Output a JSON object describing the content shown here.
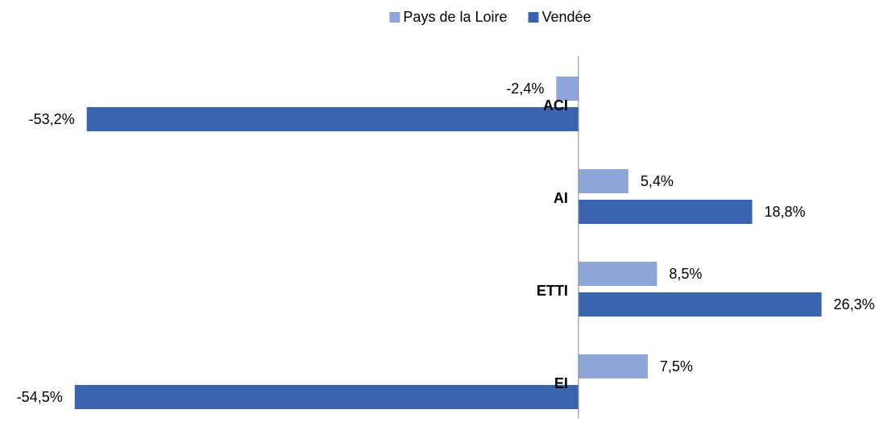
{
  "chart_data": {
    "type": "barh",
    "categories": [
      "ACI",
      "AI",
      "ETTI",
      "EI"
    ],
    "series": [
      {
        "name": "Pays de la Loire",
        "color": "#8fa5d8",
        "values": [
          -2.4,
          5.4,
          8.5,
          7.5
        ],
        "value_labels": [
          "-2,4%",
          "5,4%",
          "8,5%",
          "7,5%"
        ]
      },
      {
        "name": "Vendée",
        "color": "#3a64ad",
        "values": [
          -53.2,
          18.8,
          26.3,
          -54.5
        ],
        "value_labels": [
          "-53,2%",
          "18,8%",
          "26,3%",
          "-54,5%"
        ]
      }
    ],
    "xlim": [
      -55,
      30
    ],
    "legend": "top"
  }
}
